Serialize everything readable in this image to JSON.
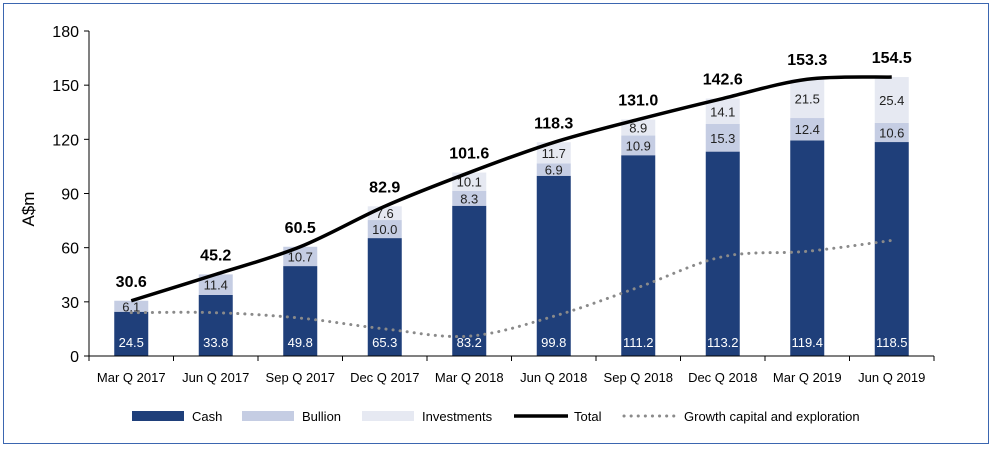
{
  "chart_data": {
    "type": "bar",
    "stacked": true,
    "ylabel": "A$m",
    "xlabel": "",
    "title": "",
    "ylim": [
      0,
      180
    ],
    "yticks": [
      0,
      30,
      60,
      90,
      120,
      150,
      180
    ],
    "grid": false,
    "legend_position": "bottom",
    "categories": [
      "Mar Q 2017",
      "Jun Q 2017",
      "Sep Q 2017",
      "Dec Q 2017",
      "Mar Q 2018",
      "Jun Q 2018",
      "Sep Q 2018",
      "Dec Q 2018",
      "Mar Q 2019",
      "Jun Q 2019"
    ],
    "series": [
      {
        "name": "Cash",
        "color": "#1f3f7a",
        "values": [
          24.5,
          33.8,
          49.8,
          65.3,
          83.2,
          99.8,
          111.2,
          113.2,
          119.4,
          118.5
        ],
        "labels": [
          "24.5",
          "33.8",
          "49.8",
          "65.3",
          "83.2",
          "99.8",
          "111.2",
          "113.2",
          "119.4",
          "118.5"
        ]
      },
      {
        "name": "Bullion",
        "color": "#c5cde3",
        "values": [
          6.1,
          11.4,
          10.7,
          10.0,
          8.3,
          6.9,
          10.9,
          15.3,
          12.4,
          10.6
        ],
        "labels": [
          "6.1",
          "11.4",
          "10.7",
          "10.0",
          "8.3",
          "6.9",
          "10.9",
          "15.3",
          "12.4",
          "10.6"
        ]
      },
      {
        "name": "Investments",
        "color": "#e6e9f2",
        "values": [
          0,
          0,
          0,
          7.6,
          10.1,
          11.7,
          8.9,
          14.1,
          21.5,
          25.4
        ],
        "labels": [
          "",
          "",
          "",
          "7.6",
          "10.1",
          "11.7",
          "8.9",
          "14.1",
          "21.5",
          "25.4"
        ]
      }
    ],
    "total": {
      "name": "Total",
      "color": "#000000",
      "values": [
        30.6,
        45.2,
        60.5,
        82.9,
        101.6,
        118.3,
        131.0,
        142.6,
        153.3,
        154.5
      ],
      "labels": [
        "30.6",
        "45.2",
        "60.5",
        "82.9",
        "101.6",
        "118.3",
        "131.0",
        "142.6",
        "153.3",
        "154.5"
      ]
    },
    "growth": {
      "name": "Growth capital and exploration",
      "color": "#8a8a8a",
      "values": [
        24,
        24,
        21,
        15,
        11,
        22,
        38,
        55,
        58,
        64
      ]
    }
  }
}
